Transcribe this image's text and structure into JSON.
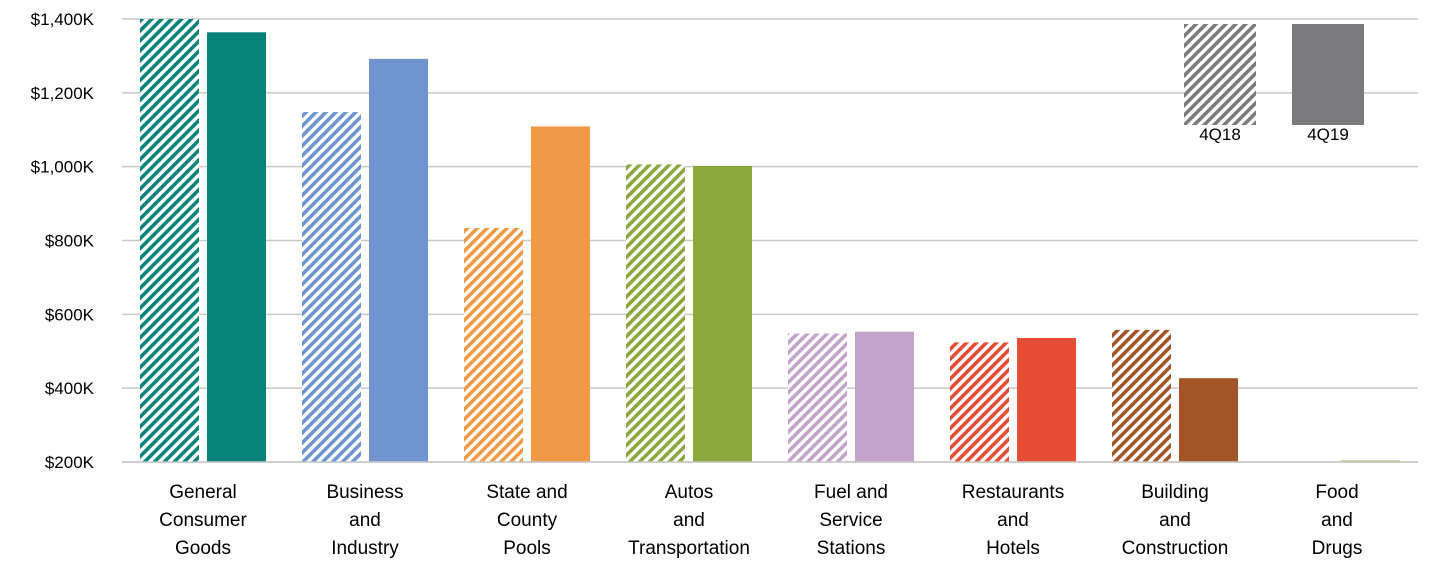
{
  "chart_data": {
    "type": "bar",
    "ylim": [
      200,
      1400
    ],
    "y_ticks": [
      {
        "value": 200,
        "label": "$200K"
      },
      {
        "value": 400,
        "label": "$400K"
      },
      {
        "value": 600,
        "label": "$600K"
      },
      {
        "value": 800,
        "label": "$800K"
      },
      {
        "value": 1000,
        "label": "$1,000K"
      },
      {
        "value": 1200,
        "label": "$1,200K"
      },
      {
        "value": 1400,
        "label": "$1,400K"
      }
    ],
    "grid": true,
    "legend_placement": "top-right",
    "categories": [
      {
        "lines": [
          "General",
          "Consumer",
          "Goods"
        ],
        "color": "#07837b"
      },
      {
        "lines": [
          "Business",
          "and",
          "Industry"
        ],
        "color": "#6e95cf"
      },
      {
        "lines": [
          "State and",
          "County",
          "Pools"
        ],
        "color": "#f09a45"
      },
      {
        "lines": [
          "Autos",
          "and",
          "Transportation"
        ],
        "color": "#8ba83e"
      },
      {
        "lines": [
          "Fuel and",
          "Service",
          "Stations"
        ],
        "color": "#c3a2cb"
      },
      {
        "lines": [
          "Restaurants",
          "and",
          "Hotels"
        ],
        "color": "#e54e35"
      },
      {
        "lines": [
          "Building",
          "and",
          "Construction"
        ],
        "color": "#a35527"
      },
      {
        "lines": [
          "Food",
          "and",
          "Drugs"
        ],
        "color": "#b7cc98"
      }
    ],
    "series": [
      {
        "name": "4Q18",
        "pattern": "hatched",
        "values": [
          1400,
          1148,
          834,
          1006,
          548,
          524,
          558,
          198
        ]
      },
      {
        "name": "4Q19",
        "pattern": "solid",
        "values": [
          1364,
          1292,
          1109,
          1002,
          553,
          536,
          427,
          205
        ]
      }
    ],
    "legend": [
      {
        "label": "4Q18",
        "pattern": "hatched",
        "color": "#7b7b7d"
      },
      {
        "label": "4Q19",
        "pattern": "solid",
        "color": "#7b7b7d"
      }
    ]
  }
}
